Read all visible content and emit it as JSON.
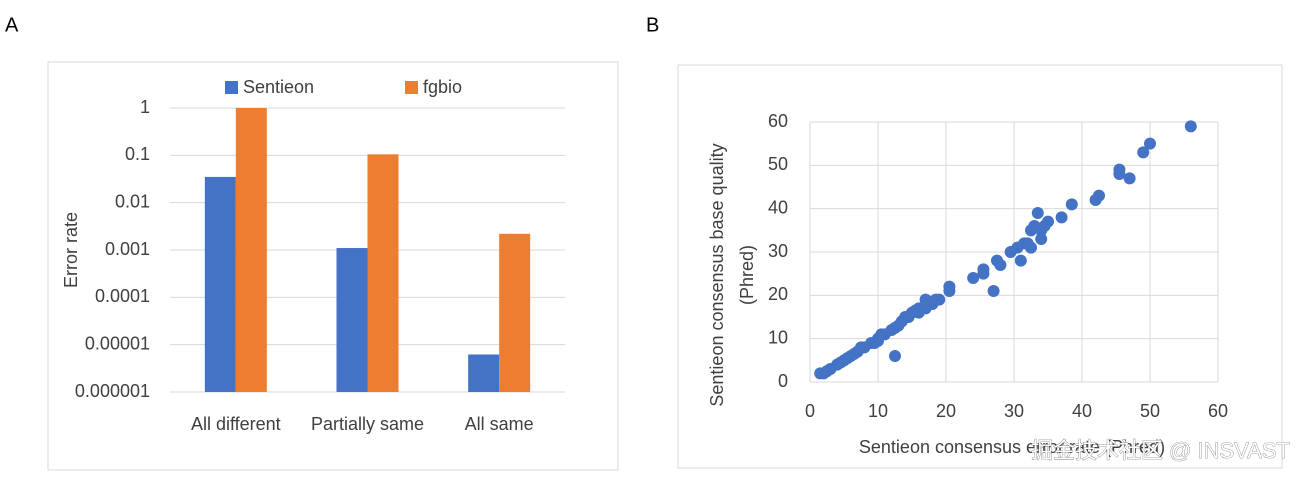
{
  "panels": [
    "A",
    "B"
  ],
  "watermark": "掘金技术社区 @ INSVAST",
  "chart_data": [
    {
      "type": "bar",
      "y_label": "Error rate",
      "log_scale": true,
      "legend": "top",
      "categories": [
        "All different",
        "Partially same",
        "All same"
      ],
      "series": [
        {
          "name": "Sentieon",
          "color": "#4472c4",
          "values": [
            0.035,
            0.0011,
            6.2e-06
          ]
        },
        {
          "name": "fgbio",
          "color": "#ed7d31",
          "values": [
            1,
            0.105,
            0.0022
          ]
        }
      ],
      "ylim": [
        1e-06,
        1
      ],
      "yticks": [
        1e-06,
        1e-05,
        0.0001,
        0.001,
        0.01,
        0.1,
        1
      ],
      "grid": true
    },
    {
      "type": "scatter",
      "x_label": "Sentieon consensus error rate (Phred)",
      "y_label": [
        "Sentieon consensus base quality",
        "(Phred)"
      ],
      "color": "#4472c4",
      "x": [
        1.5,
        2,
        2.5,
        3,
        4,
        4.5,
        5,
        5.5,
        6,
        6.5,
        7,
        7.5,
        8,
        9,
        9.5,
        10,
        10,
        10.5,
        11,
        12,
        12.5,
        12.5,
        13,
        13.5,
        14,
        14.5,
        15,
        15.5,
        16,
        16,
        16.5,
        17,
        17,
        17.5,
        18,
        18.5,
        19,
        20.5,
        20.5,
        24,
        25.5,
        25.5,
        27,
        27.5,
        28,
        29.5,
        30.5,
        31,
        31.5,
        32,
        32.5,
        32.5,
        33,
        33.5,
        34,
        34,
        34.5,
        35,
        37,
        38.5,
        42,
        42.5,
        45.5,
        45.5,
        47,
        49,
        50,
        56
      ],
      "values": [
        2,
        2,
        2.5,
        3,
        4,
        4.5,
        5,
        5.5,
        6,
        6.5,
        7,
        8,
        8,
        9,
        9,
        10,
        9.5,
        11,
        11,
        12,
        12.5,
        6,
        13,
        14,
        15,
        15,
        16,
        16.5,
        17,
        16,
        17,
        19,
        17,
        18,
        18,
        19,
        19,
        21,
        22,
        24,
        25,
        26,
        21,
        28,
        27,
        30,
        31,
        28,
        32,
        32,
        31,
        35,
        36,
        39,
        33,
        35,
        36,
        37,
        38,
        41,
        42,
        43,
        49,
        48,
        47,
        53,
        55,
        59
      ],
      "xlim": [
        0,
        60
      ],
      "xticks": [
        0,
        10,
        20,
        30,
        40,
        50,
        60
      ],
      "ylim": [
        0,
        60
      ],
      "yticks": [
        0,
        10,
        20,
        30,
        40,
        50,
        60
      ],
      "grid": true
    }
  ]
}
